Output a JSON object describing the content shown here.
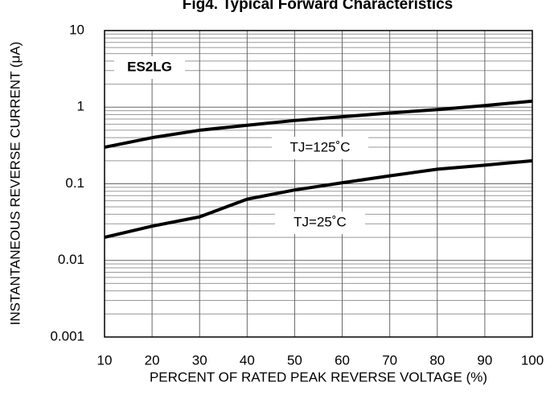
{
  "chart_data": {
    "type": "line",
    "title": "Fig4. Typical Forward Characteristics",
    "xlabel": "PERCENT OF RATED PEAK REVERSE VOLTAGE (%)",
    "ylabel": "INSTANTANEOUS REVERSE CURRENT (μA)",
    "x": [
      10,
      20,
      30,
      40,
      50,
      60,
      70,
      80,
      90,
      100
    ],
    "series": [
      {
        "name": "TJ=125˚C",
        "color": "#000000",
        "values": [
          0.3,
          0.4,
          0.5,
          0.58,
          0.67,
          0.75,
          0.84,
          0.93,
          1.05,
          1.2
        ]
      },
      {
        "name": "TJ=25˚C",
        "color": "#000000",
        "values": [
          0.02,
          0.028,
          0.037,
          0.063,
          0.083,
          0.103,
          0.127,
          0.155,
          0.175,
          0.2
        ]
      }
    ],
    "annotations": [
      "ES2LG"
    ],
    "xlim": [
      10,
      100
    ],
    "xticks": [
      10,
      20,
      30,
      40,
      50,
      60,
      70,
      80,
      90,
      100
    ],
    "ylim": [
      0.001,
      10
    ],
    "yticks": [
      0.001,
      0.01,
      0.1,
      1,
      10
    ],
    "ylog": true,
    "grid": true,
    "minor_grid": true
  }
}
